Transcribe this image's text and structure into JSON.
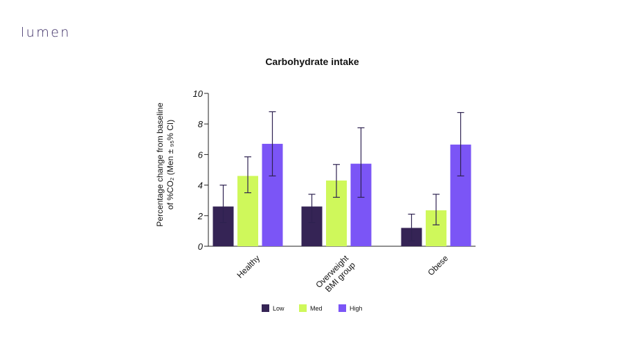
{
  "brand": {
    "logo_text": "lumen"
  },
  "chart_data": {
    "type": "bar",
    "title": "Carbohydrate intake",
    "ylabel_line1": "Percentage change from baseline",
    "ylabel_line2": "of %CO₂ (Men ± ₉₅% CI)",
    "xlabel": "",
    "ylim": [
      0,
      10
    ],
    "yticks": [
      0,
      2,
      4,
      6,
      8,
      10
    ],
    "categories": [
      [
        "Healthy"
      ],
      [
        "Overweight",
        "BMI group"
      ],
      [
        "Obese"
      ]
    ],
    "series": [
      {
        "name": "Low",
        "color": "#352455",
        "values": [
          2.6,
          2.6,
          1.2
        ],
        "ci_low": [
          1.55,
          1.55,
          0.35
        ],
        "ci_high": [
          4.0,
          3.4,
          2.1
        ]
      },
      {
        "name": "Med",
        "color": "#cff85b",
        "values": [
          4.6,
          4.3,
          2.35
        ],
        "ci_low": [
          3.5,
          3.2,
          1.4
        ],
        "ci_high": [
          5.85,
          5.35,
          3.4
        ]
      },
      {
        "name": "High",
        "color": "#7b55f6",
        "values": [
          6.7,
          5.4,
          6.65
        ],
        "ci_low": [
          4.6,
          3.2,
          4.6
        ],
        "ci_high": [
          8.8,
          7.75,
          8.75
        ]
      }
    ],
    "legend_position": "bottom",
    "grid": false
  }
}
